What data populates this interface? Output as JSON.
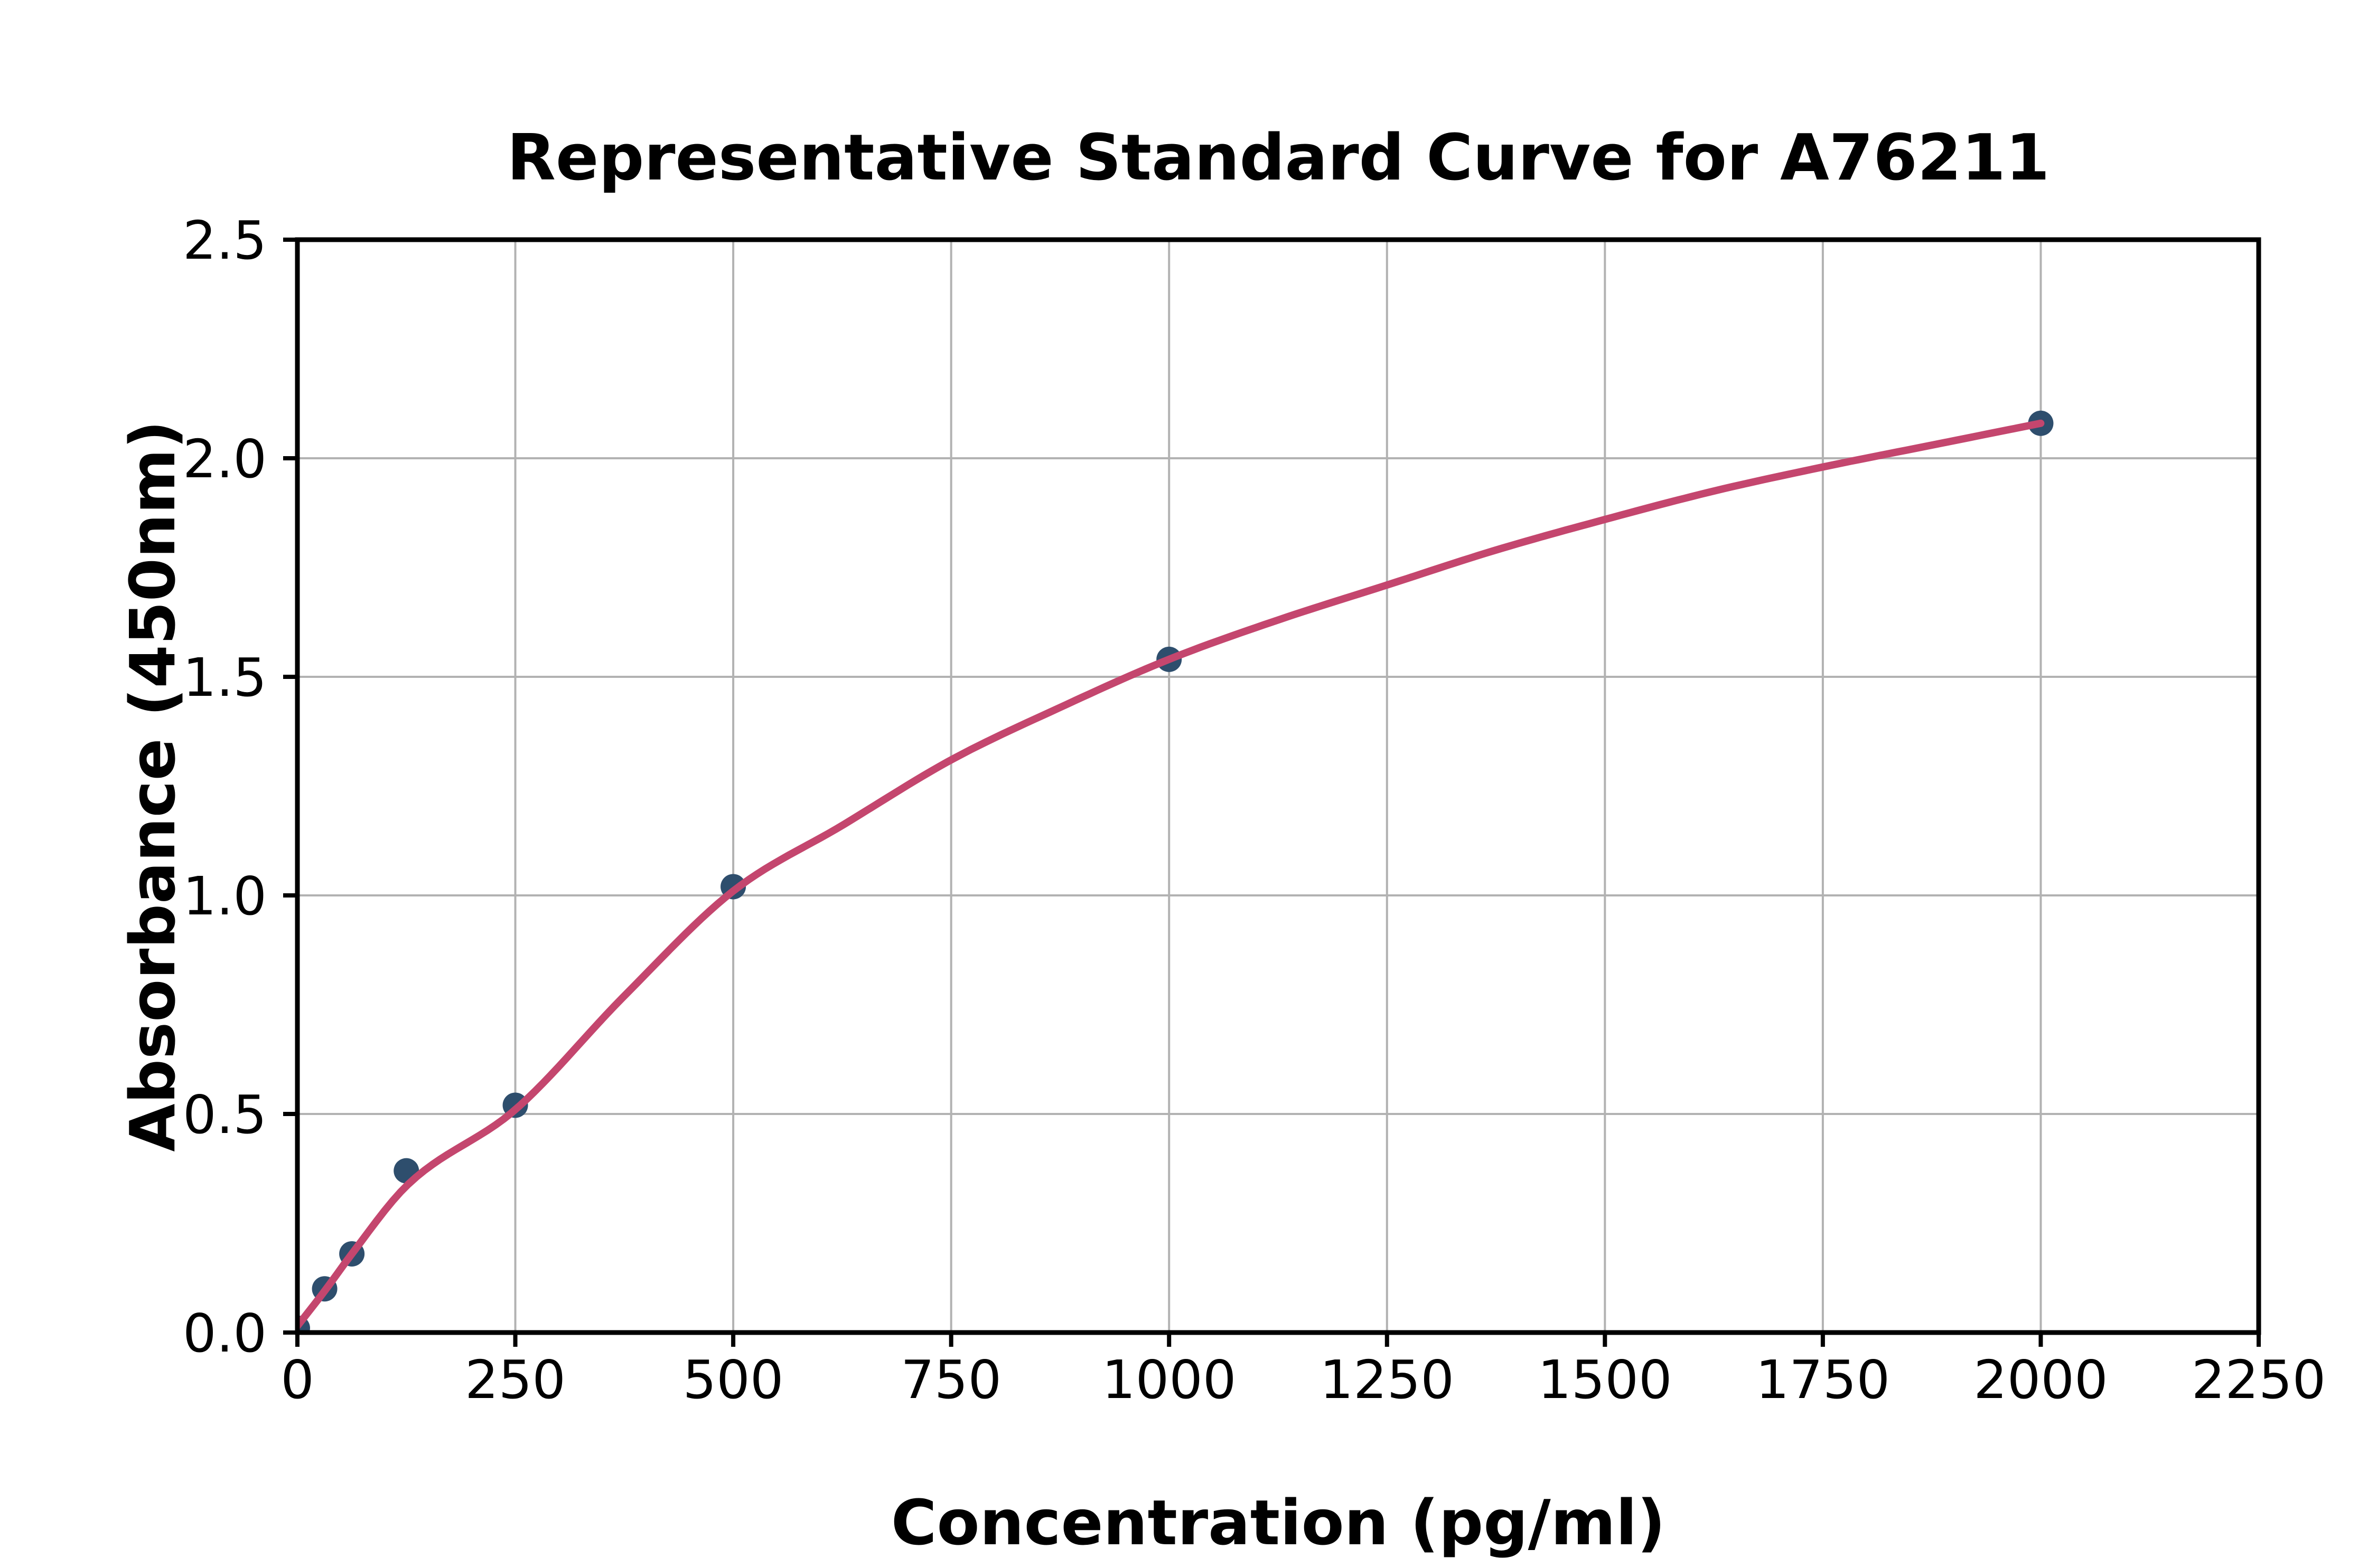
{
  "page": {
    "background": "#ffffff"
  },
  "chart_data": {
    "type": "scatter",
    "title": "Representative Standard Curve for A76211",
    "xlabel": "Concentration (pg/ml)",
    "ylabel": "Absorbance (450nm)",
    "xlim": [
      0,
      2250
    ],
    "ylim": [
      0.0,
      2.5
    ],
    "grid": true,
    "legend": "none",
    "x_ticks": {
      "values": [
        0,
        250,
        500,
        750,
        1000,
        1250,
        1500,
        1750,
        2000,
        2250
      ],
      "labels": [
        "0",
        "250",
        "500",
        "750",
        "1000",
        "1250",
        "1500",
        "1750",
        "2000",
        "2250"
      ]
    },
    "y_ticks": {
      "values": [
        0.0,
        0.5,
        1.0,
        1.5,
        2.0,
        2.5
      ],
      "labels": [
        "0.0",
        "0.5",
        "1.0",
        "1.5",
        "2.0",
        "2.5"
      ]
    },
    "series": [
      {
        "name": "standard-data-points",
        "kind": "scatter",
        "x": [
          0,
          31.25,
          62.5,
          125,
          250,
          500,
          1000,
          2000
        ],
        "y": [
          0.01,
          0.1,
          0.18,
          0.37,
          0.52,
          1.02,
          1.54,
          2.08
        ]
      },
      {
        "name": "fitted-standard-curve",
        "kind": "line",
        "x": [
          0,
          31.25,
          62.5,
          125,
          250,
          375,
          500,
          625,
          750,
          875,
          1000,
          1125,
          1250,
          1375,
          1500,
          1625,
          1750,
          1875,
          2000
        ],
        "y": [
          0.015,
          0.095,
          0.18,
          0.335,
          0.51,
          0.77,
          1.01,
          1.16,
          1.31,
          1.43,
          1.54,
          1.63,
          1.71,
          1.79,
          1.86,
          1.925,
          1.98,
          2.03,
          2.08
        ]
      }
    ],
    "colors": {
      "marker": "#2e4e6d",
      "curve": "#c4466e",
      "grid": "#b2b2b2",
      "spine": "#000000",
      "text": "#000000",
      "background": "#ffffff"
    }
  }
}
